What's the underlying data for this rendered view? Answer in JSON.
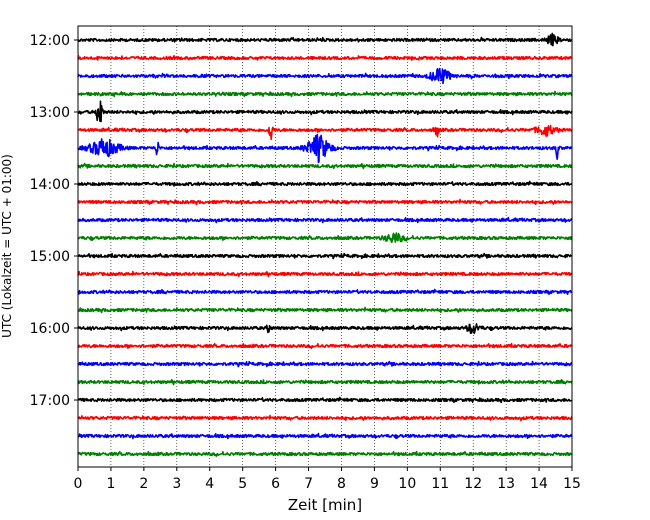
{
  "chart_data": {
    "type": "line",
    "title": "",
    "xlabel": "Zeit  [min]",
    "ylabel": "UTC (Lokalzeit = UTC + 01:00)",
    "xlim": [
      0,
      15
    ],
    "x_ticks": [
      "0",
      "1",
      "2",
      "3",
      "4",
      "5",
      "6",
      "7",
      "8",
      "9",
      "10",
      "11",
      "12",
      "13",
      "14",
      "15"
    ],
    "y_ticks": [
      "12:00",
      "13:00",
      "14:00",
      "15:00",
      "16:00",
      "17:00"
    ],
    "grid": "vertical-dotted",
    "trace_interval_minutes": 15,
    "series_colors": [
      "#000000",
      "#ff0000",
      "#0000ff",
      "#008000"
    ],
    "traces": [
      {
        "start": "12:00",
        "color": "#000000"
      },
      {
        "start": "12:15",
        "color": "#ff0000"
      },
      {
        "start": "12:30",
        "color": "#0000ff"
      },
      {
        "start": "12:45",
        "color": "#008000"
      },
      {
        "start": "13:00",
        "color": "#000000"
      },
      {
        "start": "13:15",
        "color": "#ff0000"
      },
      {
        "start": "13:30",
        "color": "#0000ff"
      },
      {
        "start": "13:45",
        "color": "#008000"
      },
      {
        "start": "14:00",
        "color": "#000000"
      },
      {
        "start": "14:15",
        "color": "#ff0000"
      },
      {
        "start": "14:30",
        "color": "#0000ff"
      },
      {
        "start": "14:45",
        "color": "#008000"
      },
      {
        "start": "15:00",
        "color": "#000000"
      },
      {
        "start": "15:15",
        "color": "#ff0000"
      },
      {
        "start": "15:30",
        "color": "#0000ff"
      },
      {
        "start": "15:45",
        "color": "#008000"
      },
      {
        "start": "16:00",
        "color": "#000000"
      },
      {
        "start": "16:15",
        "color": "#ff0000"
      },
      {
        "start": "16:30",
        "color": "#0000ff"
      },
      {
        "start": "16:45",
        "color": "#008000"
      },
      {
        "start": "17:00",
        "color": "#000000"
      },
      {
        "start": "17:15",
        "color": "#ff0000"
      },
      {
        "start": "17:30",
        "color": "#0000ff"
      },
      {
        "start": "17:45",
        "color": "#008000"
      }
    ],
    "events": [
      {
        "trace": 4,
        "minute": 0.65,
        "amplitude": 1.0,
        "width": 0.15
      },
      {
        "trace": 5,
        "minute": 5.85,
        "amplitude": 0.6,
        "width": 0.1
      },
      {
        "trace": 6,
        "minute": 0.8,
        "amplitude": 0.35,
        "width": 0.9
      },
      {
        "trace": 6,
        "minute": 7.3,
        "amplitude": 0.5,
        "width": 0.7
      },
      {
        "trace": 6,
        "minute": 2.4,
        "amplitude": 0.35,
        "width": 0.1
      },
      {
        "trace": 6,
        "minute": 14.55,
        "amplitude": 0.4,
        "width": 0.1
      },
      {
        "trace": 2,
        "minute": 11.0,
        "amplitude": 0.3,
        "width": 0.6
      },
      {
        "trace": 5,
        "minute": 10.9,
        "amplitude": 0.3,
        "width": 0.1
      },
      {
        "trace": 5,
        "minute": 14.2,
        "amplitude": 0.2,
        "width": 0.6
      },
      {
        "trace": 16,
        "minute": 12.0,
        "amplitude": 0.2,
        "width": 0.4
      },
      {
        "trace": 16,
        "minute": 5.8,
        "amplitude": 0.25,
        "width": 0.1
      },
      {
        "trace": 11,
        "minute": 9.6,
        "amplitude": 0.18,
        "width": 0.6
      },
      {
        "trace": 0,
        "minute": 14.4,
        "amplitude": 0.18,
        "width": 0.4
      }
    ]
  }
}
